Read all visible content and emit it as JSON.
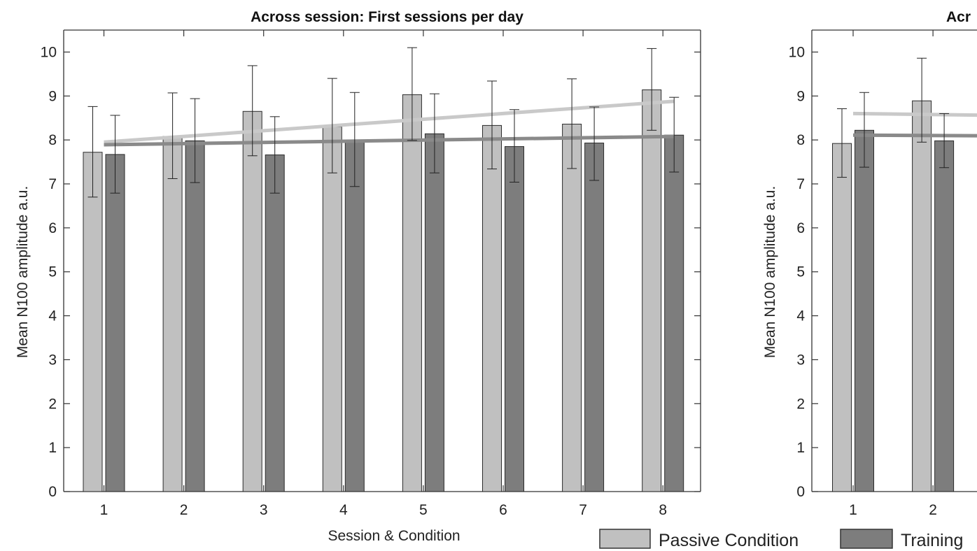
{
  "chart_data": [
    {
      "type": "bar",
      "title": "Across session: First sessions per day",
      "xlabel": "Session & Condition",
      "ylabel": "Mean N100 amplitude  a.u.",
      "ylim": [
        0,
        10.5
      ],
      "yticks": [
        0,
        1,
        2,
        3,
        4,
        5,
        6,
        7,
        8,
        9,
        10
      ],
      "categories": [
        "1",
        "2",
        "3",
        "4",
        "5",
        "6",
        "7",
        "8"
      ],
      "grid": false,
      "series": [
        {
          "name": "Passive Condition",
          "color": "#c0c0c0",
          "values": [
            7.72,
            8.08,
            8.65,
            8.3,
            9.03,
            8.33,
            8.36,
            9.14
          ],
          "err_low": [
            6.7,
            7.12,
            7.64,
            7.25,
            7.99,
            7.34,
            7.35,
            8.22
          ],
          "err_high": [
            8.76,
            9.07,
            9.69,
            9.4,
            10.1,
            9.34,
            9.39,
            10.08
          ],
          "trend": [
            7.95,
            8.88
          ]
        },
        {
          "name": "Training",
          "color": "#7d7d7d",
          "values": [
            7.67,
            7.98,
            7.66,
            7.99,
            8.14,
            7.85,
            7.93,
            8.11
          ],
          "err_low": [
            6.79,
            7.03,
            6.79,
            6.94,
            7.25,
            7.04,
            7.08,
            7.27
          ],
          "err_high": [
            8.56,
            8.94,
            8.53,
            9.08,
            9.05,
            8.69,
            8.75,
            8.97
          ],
          "trend": [
            7.89,
            8.08
          ]
        }
      ]
    },
    {
      "type": "bar",
      "title": "Acr",
      "xlabel": "",
      "ylabel": "Mean N100 amplitude  a.u.",
      "ylim": [
        0,
        10.5
      ],
      "yticks": [
        0,
        1,
        2,
        3,
        4,
        5,
        6,
        7,
        8,
        9,
        10
      ],
      "categories": [
        "1",
        "2"
      ],
      "grid": false,
      "series": [
        {
          "name": "Passive Condition",
          "color": "#c0c0c0",
          "values": [
            7.92,
            8.89
          ],
          "err_low": [
            7.15,
            7.95
          ],
          "err_high": [
            8.71,
            9.86
          ],
          "trend": [
            8.6,
            8.55
          ]
        },
        {
          "name": "Training",
          "color": "#7d7d7d",
          "values": [
            8.22,
            7.98
          ],
          "err_low": [
            7.38,
            7.37
          ],
          "err_high": [
            9.08,
            8.6
          ],
          "trend": [
            8.11,
            8.09
          ]
        }
      ]
    }
  ],
  "legend": {
    "items": [
      {
        "label": "Passive Condition",
        "color": "#c0c0c0"
      },
      {
        "label": "Training",
        "color": "#7d7d7d"
      }
    ],
    "placement": "bottom-right"
  }
}
